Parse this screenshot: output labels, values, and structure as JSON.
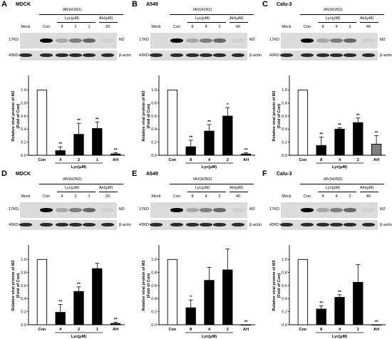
{
  "panels": [
    {
      "letter": "A",
      "cell": "MDCK",
      "virus": "IAV(H1N1)",
      "lyc_header": "Lyc(μM)",
      "ah_header": "AH(μM)",
      "lanes": [
        "Mock",
        "Con",
        "4",
        "2",
        "1",
        "20"
      ],
      "m2_label": "M2",
      "actin_label": "β-actin",
      "kd17": "17KD",
      "kd43": "43KD",
      "chart_data": {
        "type": "bar",
        "ylabel": "Relative viral protein of M2",
        "ylabel2": "(Fold of Con)",
        "xlabel": "Lyc(μM)",
        "categories": [
          "Con",
          "4",
          "2",
          "1",
          "AH"
        ],
        "values": [
          1.0,
          0.07,
          0.32,
          0.41,
          0.02
        ],
        "errors": [
          0,
          0.06,
          0.17,
          0.1,
          0.02
        ],
        "sig": [
          "",
          "**",
          "**",
          "**",
          "**"
        ],
        "ylim": [
          0,
          1.2
        ],
        "yticks": [
          0.0,
          0.2,
          0.4,
          0.6,
          0.8,
          1.0
        ],
        "fills": [
          "#ffffff",
          "#000000",
          "#000000",
          "#000000",
          "#000000"
        ]
      }
    },
    {
      "letter": "B",
      "cell": "A549",
      "virus": "IAV(H1N1)",
      "lyc_header": "Lyc(μM)",
      "ah_header": "AH(μM)",
      "lanes": [
        "Mock",
        "Con",
        "8",
        "4",
        "2",
        "40"
      ],
      "m2_label": "M2",
      "actin_label": "β-actin",
      "kd17": "17KD",
      "kd43": "43KD",
      "chart_data": {
        "type": "bar",
        "ylabel": "Relative viral protein of M2",
        "ylabel2": "(Fold of Con)",
        "xlabel": "Lyc(μM)",
        "categories": [
          "Con",
          "8",
          "4",
          "2",
          "AH"
        ],
        "values": [
          1.0,
          0.13,
          0.37,
          0.6,
          0.02
        ],
        "errors": [
          0,
          0.1,
          0.1,
          0.13,
          0.02
        ],
        "sig": [
          "",
          "**",
          "**",
          "*",
          "**"
        ],
        "ylim": [
          0,
          1.2
        ],
        "yticks": [
          0.0,
          0.2,
          0.4,
          0.6,
          0.8,
          1.0
        ],
        "fills": [
          "#ffffff",
          "#000000",
          "#000000",
          "#000000",
          "#000000"
        ]
      }
    },
    {
      "letter": "C",
      "cell": "Calu-3",
      "virus": "IAV(H1N1)",
      "lyc_header": "Lyc(μM)",
      "ah_header": "AH(μM)",
      "lanes": [
        "Mock",
        "Con",
        "8",
        "4",
        "2",
        "40"
      ],
      "m2_label": "M2",
      "actin_label": "β-actin",
      "kd17": "17KD",
      "kd43": "43KD",
      "chart_data": {
        "type": "bar",
        "ylabel": "Relative viral protein of M2",
        "ylabel2": "(Fold of Con)",
        "xlabel": "Lyc(μM)",
        "categories": [
          "Con",
          "8",
          "4",
          "2",
          "AH"
        ],
        "values": [
          1.0,
          0.15,
          0.4,
          0.5,
          0.17
        ],
        "errors": [
          0,
          0.13,
          0.02,
          0.07,
          0.13
        ],
        "sig": [
          "",
          "**",
          "**",
          "**",
          "**"
        ],
        "ylim": [
          0,
          1.2
        ],
        "yticks": [
          0.0,
          0.2,
          0.4,
          0.6,
          0.8,
          1.0
        ],
        "fills": [
          "#ffffff",
          "#000000",
          "#000000",
          "#000000",
          "#808080"
        ]
      }
    },
    {
      "letter": "D",
      "cell": "MDCK",
      "virus": "IAV(H3N2)",
      "lyc_header": "Lyc(μM)",
      "ah_header": "AH(μM)",
      "lanes": [
        "Mock",
        "Con",
        "4",
        "2",
        "1",
        "20"
      ],
      "m2_label": "M2",
      "actin_label": "β-actin",
      "kd17": "17KD",
      "kd43": "43KD",
      "chart_data": {
        "type": "bar",
        "ylabel": "Relative viral protein of M2",
        "ylabel2": "(Fold of Con)",
        "xlabel": "Lyc(μM)",
        "categories": [
          "Con",
          "4",
          "2",
          "1",
          "AH"
        ],
        "values": [
          1.0,
          0.19,
          0.51,
          0.86,
          0.02
        ],
        "errors": [
          0,
          0.12,
          0.07,
          0.08,
          0.02
        ],
        "sig": [
          "",
          "**",
          "**",
          "",
          "**"
        ],
        "ylim": [
          0,
          1.2
        ],
        "yticks": [
          0.0,
          0.2,
          0.4,
          0.6,
          0.8,
          1.0
        ],
        "fills": [
          "#ffffff",
          "#000000",
          "#000000",
          "#000000",
          "#000000"
        ]
      }
    },
    {
      "letter": "E",
      "cell": "A549",
      "virus": "IAV(H3N2)",
      "lyc_header": "Lyc(μM)",
      "ah_header": "AH(μM)",
      "lanes": [
        "Mock",
        "Con",
        "8",
        "4",
        "2",
        "40"
      ],
      "m2_label": "M2",
      "actin_label": "β-actin",
      "kd17": "17KD",
      "kd43": "43KD",
      "chart_data": {
        "type": "bar",
        "ylabel": "Relative viral protein of M2",
        "ylabel2": "(Fold of Con)",
        "xlabel": "Lyc(μM)",
        "categories": [
          "Con",
          "8",
          "4",
          "2",
          "AH"
        ],
        "values": [
          1.0,
          0.26,
          0.68,
          0.84,
          0.0
        ],
        "errors": [
          0,
          0.12,
          0.2,
          0.32,
          0
        ],
        "sig": [
          "",
          "*",
          "",
          "",
          "**"
        ],
        "ylim": [
          0,
          1.2
        ],
        "yticks": [
          0.0,
          0.2,
          0.4,
          0.6,
          0.8,
          1.0
        ],
        "fills": [
          "#ffffff",
          "#000000",
          "#000000",
          "#000000",
          "#000000"
        ]
      }
    },
    {
      "letter": "F",
      "cell": "Calu-3",
      "virus": "IAV(H3N2)",
      "lyc_header": "Lyc(μM)",
      "ah_header": "AH(μM)",
      "lanes": [
        "Mock",
        "Con",
        "8",
        "4",
        "2",
        "40"
      ],
      "m2_label": "M2",
      "actin_label": "β-actin",
      "kd17": "17KD",
      "kd43": "43KD",
      "chart_data": {
        "type": "bar",
        "ylabel": "Relative viral protein of M2",
        "ylabel2": "(Fold of Con)",
        "xlabel": "Lyc(μM)",
        "categories": [
          "Con",
          "8",
          "4",
          "2",
          "AH"
        ],
        "values": [
          1.0,
          0.24,
          0.42,
          0.65,
          0.0
        ],
        "errors": [
          0,
          0.05,
          0.04,
          0.27,
          0
        ],
        "sig": [
          "",
          "**",
          "**",
          "",
          "**"
        ],
        "ylim": [
          0,
          1.2
        ],
        "yticks": [
          0.0,
          0.2,
          0.4,
          0.6,
          0.8,
          1.0
        ],
        "fills": [
          "#ffffff",
          "#000000",
          "#000000",
          "#000000",
          "#000000"
        ]
      }
    }
  ]
}
